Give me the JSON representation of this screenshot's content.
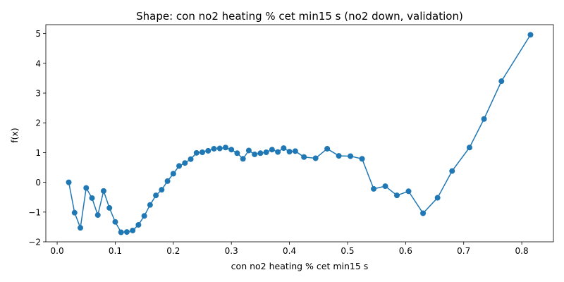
{
  "chart_data": {
    "type": "line",
    "title": "Shape: con no2 heating % cet min15 s (no2 down, validation)",
    "xlabel": "con no2 heating % cet min15 s",
    "ylabel": "f(x)",
    "xlim": [
      -0.0195,
      0.8545
    ],
    "ylim": [
      -2.0,
      5.3
    ],
    "xticks": [
      0.0,
      0.1,
      0.2,
      0.3,
      0.4,
      0.5,
      0.6,
      0.7,
      0.8
    ],
    "xtick_labels": [
      "0.0",
      "0.1",
      "0.2",
      "0.3",
      "0.4",
      "0.5",
      "0.6",
      "0.7",
      "0.8"
    ],
    "yticks": [
      -2,
      -1,
      0,
      1,
      2,
      3,
      4,
      5
    ],
    "ytick_labels": [
      "−2",
      "−1",
      "0",
      "1",
      "2",
      "3",
      "4",
      "5"
    ],
    "grid": false,
    "color": "#1f77b4",
    "markers": true,
    "series": [
      {
        "x": [
          0.02,
          0.03,
          0.04,
          0.05,
          0.06,
          0.07,
          0.08,
          0.09,
          0.1,
          0.11,
          0.12,
          0.13,
          0.14,
          0.15,
          0.16,
          0.17,
          0.18,
          0.19,
          0.2,
          0.21,
          0.22,
          0.23,
          0.24,
          0.25,
          0.26,
          0.27,
          0.28,
          0.29,
          0.3,
          0.31,
          0.32,
          0.33,
          0.34,
          0.35,
          0.36,
          0.37,
          0.38,
          0.39,
          0.4,
          0.41,
          0.425,
          0.445,
          0.465,
          0.485,
          0.505,
          0.525,
          0.545,
          0.565,
          0.585,
          0.605,
          0.63,
          0.655,
          0.68,
          0.71,
          0.735,
          0.765,
          0.815
        ],
        "y": [
          0.0,
          -1.02,
          -1.53,
          -0.19,
          -0.53,
          -1.1,
          -0.29,
          -0.86,
          -1.33,
          -1.68,
          -1.67,
          -1.62,
          -1.43,
          -1.13,
          -0.76,
          -0.44,
          -0.25,
          0.04,
          0.29,
          0.55,
          0.65,
          0.78,
          0.99,
          1.01,
          1.06,
          1.13,
          1.14,
          1.17,
          1.1,
          0.98,
          0.79,
          1.07,
          0.94,
          0.98,
          1.01,
          1.1,
          1.02,
          1.15,
          1.03,
          1.05,
          0.85,
          0.81,
          1.13,
          0.89,
          0.88,
          0.79,
          -0.22,
          -0.13,
          -0.44,
          -0.3,
          -1.04,
          -0.52,
          0.38,
          1.17,
          2.13,
          3.4,
          4.96
        ]
      }
    ]
  }
}
